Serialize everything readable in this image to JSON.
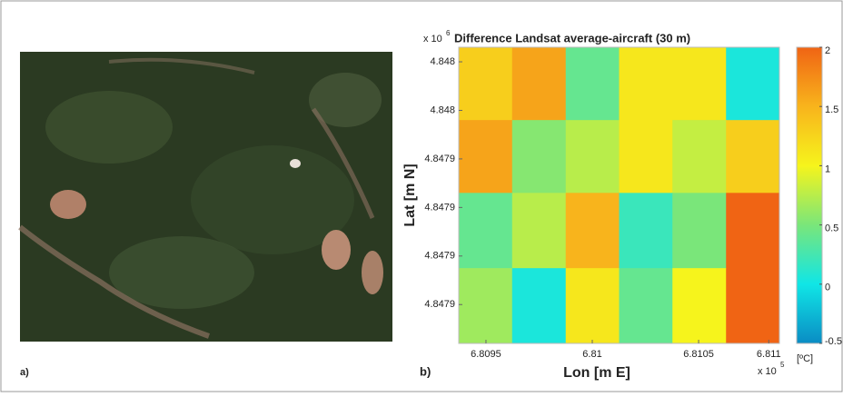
{
  "image_panel": {
    "label": "a)"
  },
  "chart_data": {
    "type": "heatmap",
    "panel_label": "b)",
    "title": "Difference Landsat average-aircraft (30 m)",
    "xlabel": "Lon [m E]",
    "ylabel": "Lat [m N]",
    "x_multiplier": "x 10",
    "x_multiplier_power": "5",
    "y_multiplier": "x 10",
    "y_multiplier_power": "6",
    "x_edges": [
      6.809372,
      6.809623,
      6.809875,
      6.810126,
      6.810377,
      6.810629,
      6.81088
    ],
    "y_edges": [
      4.847986,
      4.847956,
      4.847926,
      4.847895,
      4.847864
    ],
    "z": [
      [
        1.3,
        1.6,
        0.4,
        1.1,
        1.1,
        0.05
      ],
      [
        1.6,
        0.55,
        0.75,
        1.1,
        0.8,
        1.3
      ],
      [
        0.4,
        0.75,
        1.5,
        0.2,
        0.5,
        2.0
      ],
      [
        0.65,
        0.05,
        1.1,
        0.4,
        1.0,
        2.0
      ]
    ],
    "xlim": [
      6.809372,
      6.81088
    ],
    "ylim": [
      4.847864,
      4.847986
    ],
    "xticks": [
      6.8095,
      6.81,
      6.8105,
      {
        "value": 6.81083,
        "label": "6.811"
      }
    ],
    "yticks": [
      {
        "value": 4.84798,
        "label": "4.848"
      },
      {
        "value": 4.84796,
        "label": "4.848"
      },
      {
        "value": 4.84794,
        "label": "4.8479"
      },
      {
        "value": 4.84792,
        "label": "4.8479"
      },
      {
        "value": 4.8479,
        "label": "4.8479"
      },
      {
        "value": 4.84788,
        "label": "4.8479"
      }
    ],
    "clim": [
      -0.5,
      2
    ],
    "cticks": [
      2,
      1.5,
      1,
      0.5,
      0,
      -0.5
    ],
    "colorbar_label": "[ºC]",
    "colormap": [
      "#0a8cc4",
      "#10e6e6",
      "#7ae67a",
      "#f6f41c",
      "#f8b41c",
      "#f06414"
    ]
  }
}
